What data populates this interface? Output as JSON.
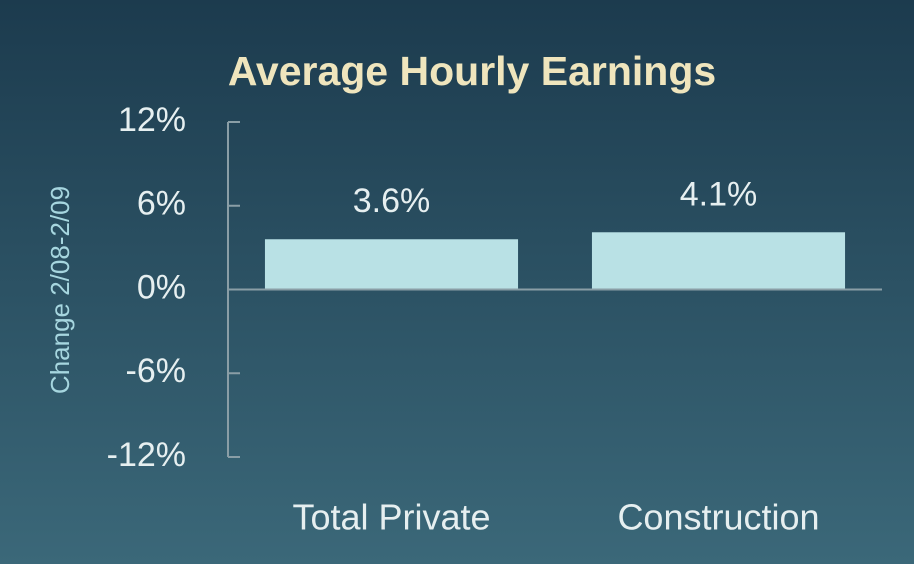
{
  "chart_data": {
    "type": "bar",
    "title": "Average Hourly Earnings",
    "y_label": "Change 2/08-2/09",
    "categories": [
      "Total Private",
      "Construction"
    ],
    "values": [
      3.6,
      4.1
    ],
    "value_labels": [
      "3.6%",
      "4.1%"
    ],
    "color": "#b9e1e5",
    "ylim": [
      -12,
      12
    ],
    "yticks": [
      {
        "value": 12,
        "label": "12%"
      },
      {
        "value": 6,
        "label": "6%"
      },
      {
        "value": 0,
        "label": "0%"
      },
      {
        "value": -6,
        "label": "-6%"
      },
      {
        "value": -12,
        "label": "-12%"
      }
    ],
    "grid": false
  }
}
